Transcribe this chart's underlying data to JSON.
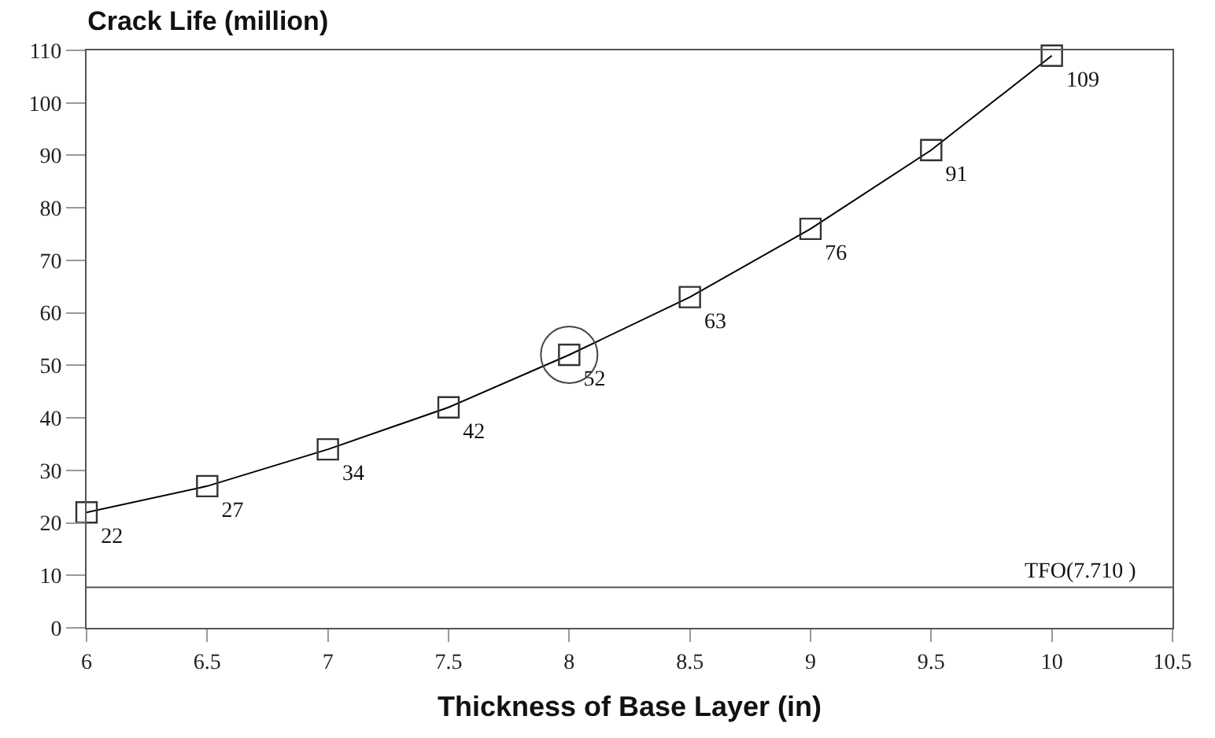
{
  "chart_data": {
    "type": "line",
    "title": "Crack Life (million)",
    "xlabel": "Thickness of Base Layer (in)",
    "x": [
      6,
      6.5,
      7,
      7.5,
      8,
      8.5,
      9,
      9.5,
      10
    ],
    "series": [
      {
        "color": "#000000",
        "values": [
          22,
          27,
          34,
          42,
          52,
          63,
          76,
          91,
          109
        ]
      }
    ],
    "data_labels": true,
    "marker": "square",
    "line_style": "solid",
    "grid": false,
    "xlim": [
      6,
      10.5
    ],
    "xticks": [
      6,
      6.5,
      7,
      7.5,
      8,
      8.5,
      9,
      9.5,
      10,
      10.5
    ],
    "ylim": [
      0,
      110
    ],
    "yticks": [
      0,
      10,
      20,
      30,
      40,
      50,
      60,
      70,
      80,
      90,
      100,
      110
    ],
    "ref_lines": [
      {
        "axis": "y",
        "value": 7.71,
        "label": "TFO(7.710 )",
        "color": "#555555"
      }
    ]
  }
}
